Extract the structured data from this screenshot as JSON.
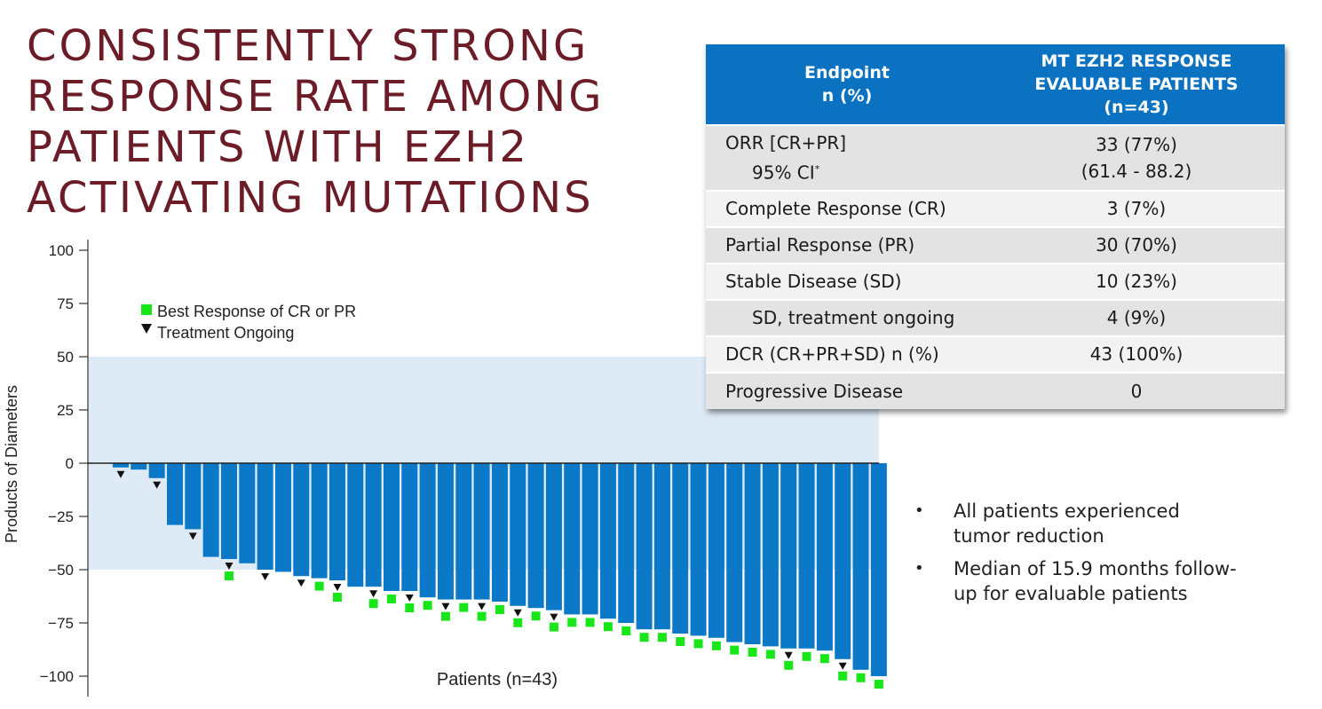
{
  "slide": {
    "title_lines": [
      "CONSISTENTLY STRONG",
      "RESPONSE RATE AMONG",
      "PATIENTS WITH EZH2",
      "ACTIVATING MUTATIONS"
    ]
  },
  "table": {
    "headers": {
      "col1": [
        "Endpoint",
        "n (%)"
      ],
      "col2": [
        "MT EZH2 RESPONSE",
        "EVALUABLE PATIENTS",
        "(n=43)"
      ]
    },
    "rows": [
      {
        "label": "ORR [CR+PR]",
        "sublabel": "95% CI",
        "sublabel_mark": "*",
        "value": "33 (77%)",
        "subvalue": "(61.4 - 88.2)"
      },
      {
        "label": "Complete Response (CR)",
        "value": "3 (7%)"
      },
      {
        "label": "Partial Response (PR)",
        "value": "30 (70%)"
      },
      {
        "label": "Stable Disease (SD)",
        "value": "10 (23%)"
      },
      {
        "label": "SD, treatment ongoing",
        "value": "4 (9%)",
        "indent": true
      },
      {
        "label": "DCR (CR+PR+SD) n (%)",
        "value": "43 (100%)"
      },
      {
        "label": "Progressive Disease",
        "value": "0"
      }
    ]
  },
  "bullets": [
    [
      "All patients experienced",
      "tumor reduction"
    ],
    [
      "Median of 15.9 months follow-",
      "up for evaluable patients"
    ]
  ],
  "colors": {
    "bar": "#0b79c8",
    "band": "#deebf7",
    "marker_response": "#19e619",
    "marker_ongoing": "#111111",
    "title": "#6b1c26",
    "table_header": "#0a72c0"
  },
  "chart_data": {
    "type": "bar",
    "ylabel": "Products of Diameters",
    "xlabel": "Patients (n=43)",
    "ylim": [
      -105,
      105
    ],
    "yticks": [
      100,
      75,
      50,
      25,
      0,
      -25,
      -50,
      -75,
      -100
    ],
    "band": [
      -50,
      50
    ],
    "legend": {
      "placement": "top-left",
      "items": [
        {
          "label": "Best Response of CR or PR",
          "marker": "square"
        },
        {
          "label": "Treatment Ongoing",
          "marker": "triangle-down"
        }
      ]
    },
    "values": [
      -2,
      -3,
      -7,
      -29,
      -31,
      -44,
      -45,
      -47,
      -50,
      -51,
      -53,
      -54,
      -55,
      -58,
      -58,
      -60,
      -60,
      -63,
      -64,
      -64,
      -64,
      -65,
      -67,
      -68,
      -69,
      -71,
      -71,
      -73,
      -75,
      -78,
      -78,
      -80,
      -81,
      -82,
      -84,
      -85,
      -86,
      -87,
      -87,
      -88,
      -92,
      -97,
      -100
    ],
    "cr_pr": [
      false,
      false,
      false,
      false,
      false,
      false,
      true,
      false,
      false,
      false,
      false,
      true,
      true,
      false,
      true,
      true,
      true,
      true,
      true,
      true,
      true,
      true,
      true,
      true,
      true,
      true,
      true,
      true,
      true,
      true,
      true,
      true,
      true,
      true,
      true,
      true,
      true,
      true,
      true,
      true,
      true,
      true,
      true
    ],
    "ongoing": [
      true,
      false,
      true,
      false,
      true,
      false,
      true,
      false,
      true,
      false,
      true,
      false,
      true,
      false,
      true,
      false,
      true,
      false,
      true,
      false,
      true,
      false,
      true,
      false,
      true,
      false,
      false,
      false,
      false,
      false,
      false,
      false,
      false,
      false,
      false,
      false,
      false,
      true,
      false,
      false,
      true,
      false,
      false
    ]
  }
}
